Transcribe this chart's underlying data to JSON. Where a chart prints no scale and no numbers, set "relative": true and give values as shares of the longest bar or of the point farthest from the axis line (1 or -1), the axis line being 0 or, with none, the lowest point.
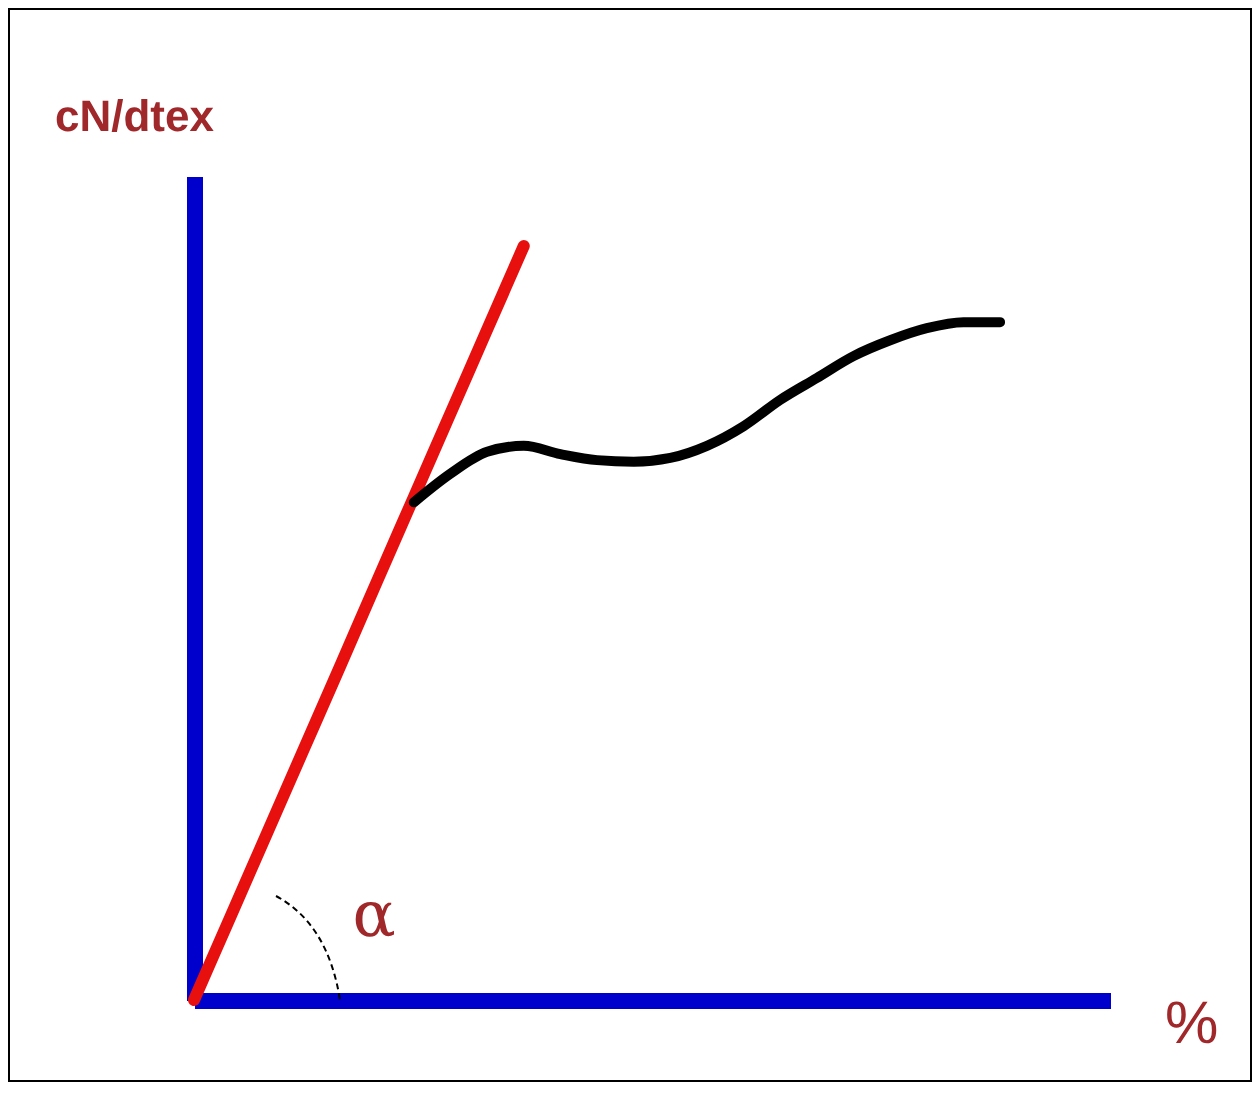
{
  "chart_data": {
    "type": "line",
    "relative": true,
    "ylabel": "cN/dtex",
    "xlabel": "%",
    "grid": false,
    "legend": false,
    "marker": "none",
    "line_style": "solid",
    "annotations": [
      "α"
    ],
    "categories": [
      null,
      null,
      null,
      null,
      null,
      null,
      null,
      null,
      null,
      null,
      null,
      null,
      null,
      null,
      null,
      null,
      null,
      null,
      null,
      null,
      null,
      null,
      null,
      null,
      null,
      null
    ],
    "series": [
      {
        "color": "#e8100f",
        "values": [
          0,
          0.111,
          0.222,
          0.333,
          0.444,
          0.556,
          0.667,
          0.778,
          0.889,
          1,
          null,
          null,
          null,
          null,
          null,
          null,
          null,
          null,
          null,
          null,
          null,
          null,
          null,
          null,
          null,
          null
        ]
      },
      {
        "color": "#000000",
        "values": [
          null,
          null,
          null,
          null,
          null,
          null,
          0.66,
          0.698,
          0.727,
          0.735,
          0.724,
          0.716,
          0.714,
          0.719,
          0.735,
          0.761,
          0.796,
          0.825,
          0.854,
          0.875,
          0.891,
          0.899,
          0.899,
          null,
          null,
          null
        ]
      }
    ]
  }
}
